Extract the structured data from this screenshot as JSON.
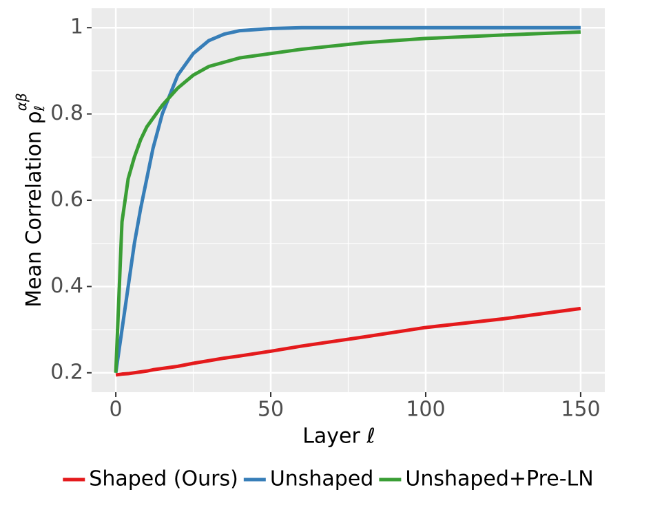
{
  "chart_data": {
    "type": "line",
    "x_label": "Layer ℓ",
    "y_label": {
      "text": "Mean Correlation ρ",
      "sub": "ℓ",
      "sup": "αβ"
    },
    "x": [
      0,
      2,
      4,
      6,
      8,
      10,
      12,
      15,
      20,
      25,
      30,
      35,
      40,
      50,
      60,
      80,
      100,
      125,
      150
    ],
    "series": [
      {
        "name": "Shaped (Ours)",
        "color": "#e41a1c",
        "values": [
          0.195,
          0.197,
          0.198,
          0.2,
          0.202,
          0.204,
          0.207,
          0.21,
          0.215,
          0.222,
          0.228,
          0.234,
          0.239,
          0.25,
          0.262,
          0.283,
          0.305,
          0.325,
          0.349
        ]
      },
      {
        "name": "Unshaped",
        "color": "#377eb8",
        "values": [
          0.2,
          0.3,
          0.4,
          0.5,
          0.58,
          0.65,
          0.72,
          0.8,
          0.89,
          0.94,
          0.97,
          0.985,
          0.993,
          0.998,
          1,
          1,
          1,
          1,
          1
        ]
      },
      {
        "name": "Unshaped+Pre-LN",
        "color": "#3a9e35",
        "values": [
          0.2,
          0.55,
          0.65,
          0.7,
          0.74,
          0.77,
          0.79,
          0.82,
          0.86,
          0.89,
          0.91,
          0.92,
          0.93,
          0.94,
          0.95,
          0.965,
          0.975,
          0.983,
          0.99
        ]
      }
    ],
    "xlim": [
      -7.8,
      157.8
    ],
    "ylim": [
      0.155,
      1.045
    ],
    "xticks": [
      0,
      50,
      100,
      150
    ],
    "yticks": [
      0.2,
      0.4,
      0.6,
      0.8,
      1
    ],
    "x_minor_ticks": [
      25,
      75,
      125
    ],
    "y_minor_ticks": [
      0.3,
      0.5,
      0.7,
      0.9
    ],
    "grid": true,
    "legend": "bottom"
  }
}
